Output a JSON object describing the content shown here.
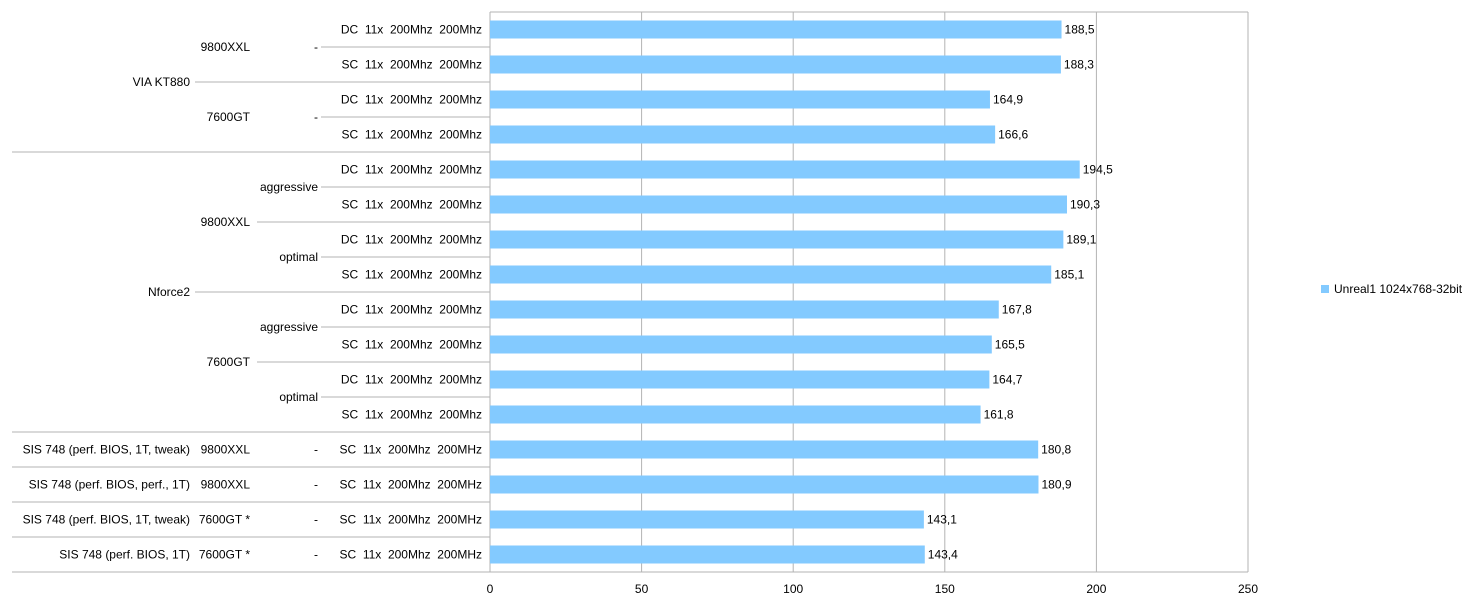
{
  "chart_data": {
    "type": "bar",
    "orientation": "horizontal",
    "xlim": [
      0,
      250
    ],
    "x_ticks": [
      "0",
      "50",
      "100",
      "150",
      "200",
      "250"
    ],
    "grid": "vertical gridlines at each tick",
    "legend_position": "right",
    "colors": {
      "bar": "#83caff",
      "grid": "#b3b3b3",
      "axis": "#b3b3b3"
    },
    "series": [
      {
        "name": "Unreal1 1024x768-32bit",
        "values": [
          188.5,
          188.3,
          164.9,
          166.6,
          194.5,
          190.3,
          189.1,
          185.1,
          167.8,
          165.5,
          164.7,
          161.8,
          180.8,
          180.9,
          143.1,
          143.4
        ],
        "value_labels": [
          "188,5",
          "188,3",
          "164,9",
          "166,6",
          "194,5",
          "190,3",
          "189,1",
          "185,1",
          "167,8",
          "165,5",
          "164,7",
          "161,8",
          "180,8",
          "180,9",
          "143,1",
          "143,4"
        ]
      }
    ],
    "categories_level4": [
      "DC  11x  200Mhz  200Mhz",
      "SC  11x  200Mhz  200Mhz",
      "DC  11x  200Mhz  200Mhz",
      "SC  11x  200Mhz  200Mhz",
      "DC  11x  200Mhz  200Mhz",
      "SC  11x  200Mhz  200Mhz",
      "DC  11x  200Mhz  200Mhz",
      "SC  11x  200Mhz  200Mhz",
      "DC  11x  200Mhz  200Mhz",
      "SC  11x  200Mhz  200Mhz",
      "DC  11x  200Mhz  200Mhz",
      "SC  11x  200Mhz  200Mhz",
      "SC  11x  200Mhz  200MHz",
      "SC  11x  200Mhz  200MHz",
      "SC  11x  200Mhz  200MHz",
      "SC  11x  200Mhz  200MHz"
    ],
    "categories_level3": [
      {
        "label": "-",
        "start": 0,
        "end": 1
      },
      {
        "label": "-",
        "start": 2,
        "end": 3
      },
      {
        "label": "aggressive",
        "start": 4,
        "end": 5
      },
      {
        "label": "optimal",
        "start": 6,
        "end": 7
      },
      {
        "label": "aggressive",
        "start": 8,
        "end": 9
      },
      {
        "label": "optimal",
        "start": 10,
        "end": 11
      },
      {
        "label": "-",
        "start": 12,
        "end": 12
      },
      {
        "label": "-",
        "start": 13,
        "end": 13
      },
      {
        "label": "-",
        "start": 14,
        "end": 14
      },
      {
        "label": "-",
        "start": 15,
        "end": 15
      }
    ],
    "categories_level2": [
      {
        "label": "9800XXL",
        "start": 0,
        "end": 1
      },
      {
        "label": "7600GT",
        "start": 2,
        "end": 3
      },
      {
        "label": "9800XXL",
        "start": 4,
        "end": 7
      },
      {
        "label": "7600GT",
        "start": 8,
        "end": 11
      },
      {
        "label": "9800XXL",
        "start": 12,
        "end": 12
      },
      {
        "label": "9800XXL",
        "start": 13,
        "end": 13
      },
      {
        "label": "7600GT *",
        "start": 14,
        "end": 14
      },
      {
        "label": "7600GT *",
        "start": 15,
        "end": 15
      }
    ],
    "categories_level1": [
      {
        "label": "VIA KT880",
        "start": 0,
        "end": 3
      },
      {
        "label": "Nforce2",
        "start": 4,
        "end": 11
      },
      {
        "label": "SIS 748 (perf. BIOS, 1T, tweak)",
        "start": 12,
        "end": 12
      },
      {
        "label": "SIS 748 (perf. BIOS, perf., 1T)",
        "start": 13,
        "end": 13
      },
      {
        "label": "SIS 748 (perf. BIOS, 1T, tweak)",
        "start": 14,
        "end": 14
      },
      {
        "label": "SIS 748 (perf. BIOS, 1T)",
        "start": 15,
        "end": 15
      }
    ]
  }
}
